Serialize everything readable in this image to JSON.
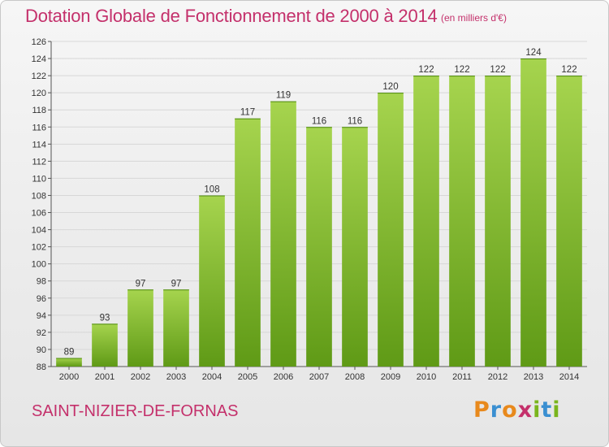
{
  "title": "Dotation Globale de Fonctionnement de 2000 à 2014",
  "unit_note": "(en milliers d'€)",
  "commune": "SAINT-NIZIER-DE-FORNAS",
  "brand": {
    "letters": [
      "P",
      "r",
      "o",
      "x",
      "i",
      "t",
      "i"
    ],
    "colors": [
      "#e8891c",
      "#3a8fd1",
      "#e8891c",
      "#c4306b",
      "#7ab51d",
      "#3a8fd1",
      "#7ab51d"
    ]
  },
  "colors": {
    "title": "#c4306b",
    "bar_top": "#a6d44e",
    "bar_bottom": "#5f9a16"
  },
  "chart_data": {
    "type": "bar",
    "categories": [
      "2000",
      "2001",
      "2002",
      "2003",
      "2004",
      "2005",
      "2006",
      "2007",
      "2008",
      "2009",
      "2010",
      "2011",
      "2012",
      "2013",
      "2014"
    ],
    "values": [
      89,
      93,
      97,
      97,
      108,
      117,
      119,
      116,
      116,
      120,
      122,
      122,
      122,
      124,
      122
    ],
    "data_labels": [
      "89",
      "93",
      "97",
      "97",
      "108",
      "117",
      "119",
      "116",
      "116",
      "120",
      "122",
      "122",
      "122",
      "124",
      "122"
    ],
    "ylim": [
      88,
      126
    ],
    "yticks": [
      88,
      90,
      92,
      94,
      96,
      98,
      100,
      102,
      104,
      106,
      108,
      110,
      112,
      114,
      116,
      118,
      120,
      122,
      124,
      126
    ],
    "grid": true,
    "xlabel": "",
    "ylabel": ""
  }
}
